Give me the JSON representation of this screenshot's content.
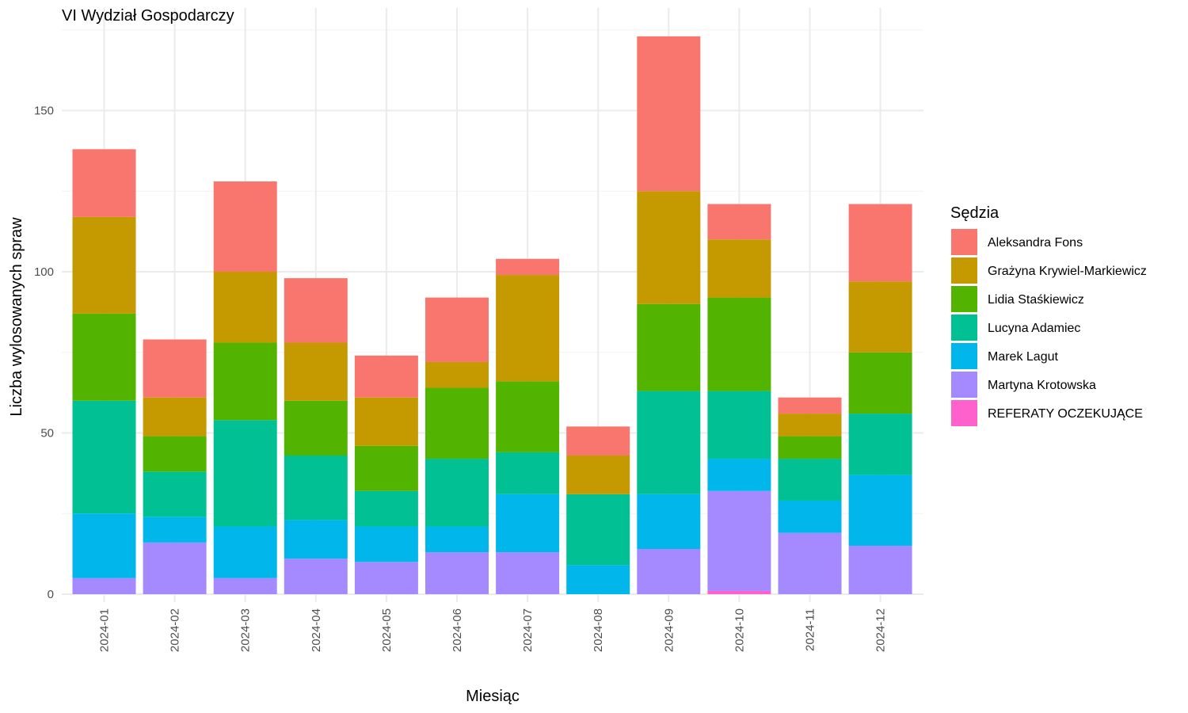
{
  "chart_data": {
    "type": "bar",
    "stacked": true,
    "title": "VI Wydział Gospodarczy",
    "xlabel": "Miesiąc",
    "ylabel": "Liczba wylosowanych spraw",
    "ylim": [
      0,
      175
    ],
    "yticks": [
      0,
      50,
      100,
      150
    ],
    "grid": true,
    "legend": {
      "title": "Sędzia",
      "position": "right"
    },
    "categories": [
      "2024-01",
      "2024-02",
      "2024-03",
      "2024-04",
      "2024-05",
      "2024-06",
      "2024-07",
      "2024-08",
      "2024-09",
      "2024-10",
      "2024-11",
      "2024-12"
    ],
    "series": [
      {
        "name": "REFERATY OCZEKUJĄCE",
        "color": "#FF61CC",
        "values": [
          0,
          0,
          0,
          0,
          0,
          0,
          0,
          0,
          0,
          1,
          0,
          0
        ]
      },
      {
        "name": "Martyna Krotowska",
        "color": "#A58AFF",
        "values": [
          5,
          16,
          5,
          11,
          10,
          13,
          13,
          0,
          14,
          31,
          19,
          15
        ]
      },
      {
        "name": "Marek Lagut",
        "color": "#00B6EB",
        "values": [
          20,
          8,
          16,
          12,
          11,
          8,
          18,
          9,
          17,
          10,
          10,
          22
        ]
      },
      {
        "name": "Lucyna Adamiec",
        "color": "#00C094",
        "values": [
          35,
          14,
          33,
          20,
          11,
          21,
          13,
          22,
          32,
          21,
          13,
          19
        ]
      },
      {
        "name": "Lidia Staśkiewicz",
        "color": "#53B400",
        "values": [
          27,
          11,
          24,
          17,
          14,
          22,
          22,
          0,
          27,
          29,
          7,
          19
        ]
      },
      {
        "name": "Grażyna Krywiel-Markiewicz",
        "color": "#C49A00",
        "values": [
          30,
          12,
          22,
          18,
          15,
          8,
          33,
          12,
          35,
          18,
          7,
          22
        ]
      },
      {
        "name": "Aleksandra Fons",
        "color": "#F8766D",
        "values": [
          21,
          18,
          28,
          20,
          13,
          20,
          5,
          9,
          48,
          11,
          5,
          24
        ]
      }
    ],
    "legend_order": [
      "Aleksandra Fons",
      "Grażyna Krywiel-Markiewicz",
      "Lidia Staśkiewicz",
      "Lucyna Adamiec",
      "Marek Lagut",
      "Martyna Krotowska",
      "REFERATY OCZEKUJĄCE"
    ]
  }
}
